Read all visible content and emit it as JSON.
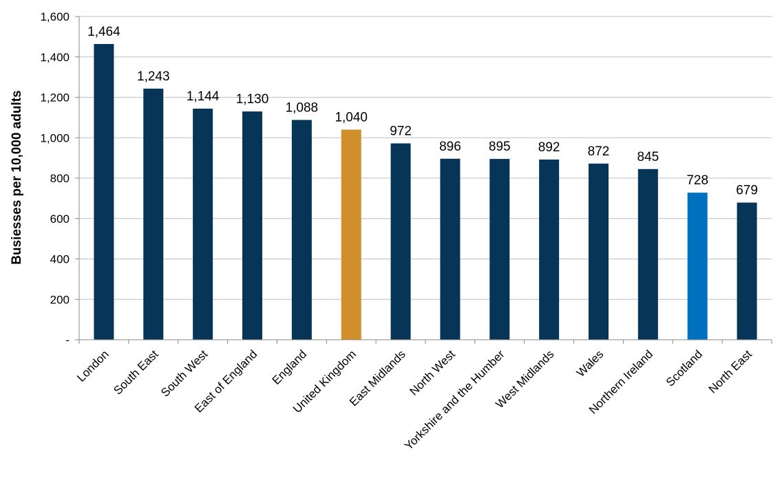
{
  "chart_data": {
    "type": "bar",
    "title": "",
    "xlabel": "",
    "ylabel": "Busiesses per 10,000 adults",
    "ylim": [
      0,
      1600
    ],
    "yticks": [
      0,
      200,
      400,
      600,
      800,
      1000,
      1200,
      1400,
      1600
    ],
    "ytick_labels": [
      "-",
      "200",
      "400",
      "600",
      "800",
      "1,000",
      "1,200",
      "1,400",
      "1,600"
    ],
    "grid": true,
    "legend": "none",
    "categories": [
      "London",
      "South East",
      "South West",
      "East of England",
      "England",
      "United Kingdom",
      "East Midlands",
      "North West",
      "Yorkshire and the Humber",
      "West Midlands",
      "Wales",
      "Northern Ireland",
      "Scotland",
      "North East"
    ],
    "values": [
      1464,
      1243,
      1144,
      1130,
      1088,
      1040,
      972,
      896,
      895,
      892,
      872,
      845,
      728,
      679
    ],
    "value_labels": [
      "1,464",
      "1,243",
      "1,144",
      "1,130",
      "1,088",
      "1,040",
      "972",
      "896",
      "895",
      "892",
      "872",
      "845",
      "728",
      "679"
    ],
    "colors": {
      "default": "#063558",
      "United Kingdom": "#D08F2A",
      "Scotland": "#0070C0",
      "grid": "#BFBFBF",
      "axis": "#888888"
    }
  }
}
